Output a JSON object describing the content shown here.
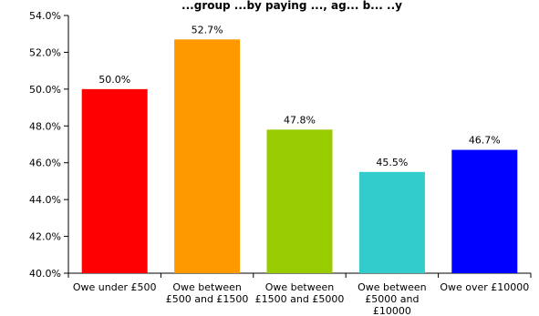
{
  "chart_data": {
    "type": "bar",
    "title": "...group ...by paying ..., ag... b... ..y",
    "categories": [
      [
        "Owe under £500"
      ],
      [
        "Owe between",
        "£500 and £1500"
      ],
      [
        "Owe between",
        "£1500 and £5000"
      ],
      [
        "Owe between",
        "£5000 and",
        "£10000"
      ],
      [
        "Owe over £10000"
      ]
    ],
    "values": [
      50.0,
      52.7,
      47.8,
      45.5,
      46.7
    ],
    "value_labels": [
      "50.0%",
      "52.7%",
      "47.8%",
      "45.5%",
      "46.7%"
    ],
    "colors": [
      "#ff0000",
      "#ff9900",
      "#99cc00",
      "#33cccc",
      "#0000ff"
    ],
    "ylim": [
      40,
      54
    ],
    "yticks": [
      40,
      42,
      44,
      46,
      48,
      50,
      52,
      54
    ],
    "ytick_labels": [
      "40.0%",
      "42.0%",
      "44.0%",
      "46.0%",
      "48.0%",
      "50.0%",
      "52.0%",
      "54.0%"
    ],
    "grid": false,
    "legend": "none"
  }
}
